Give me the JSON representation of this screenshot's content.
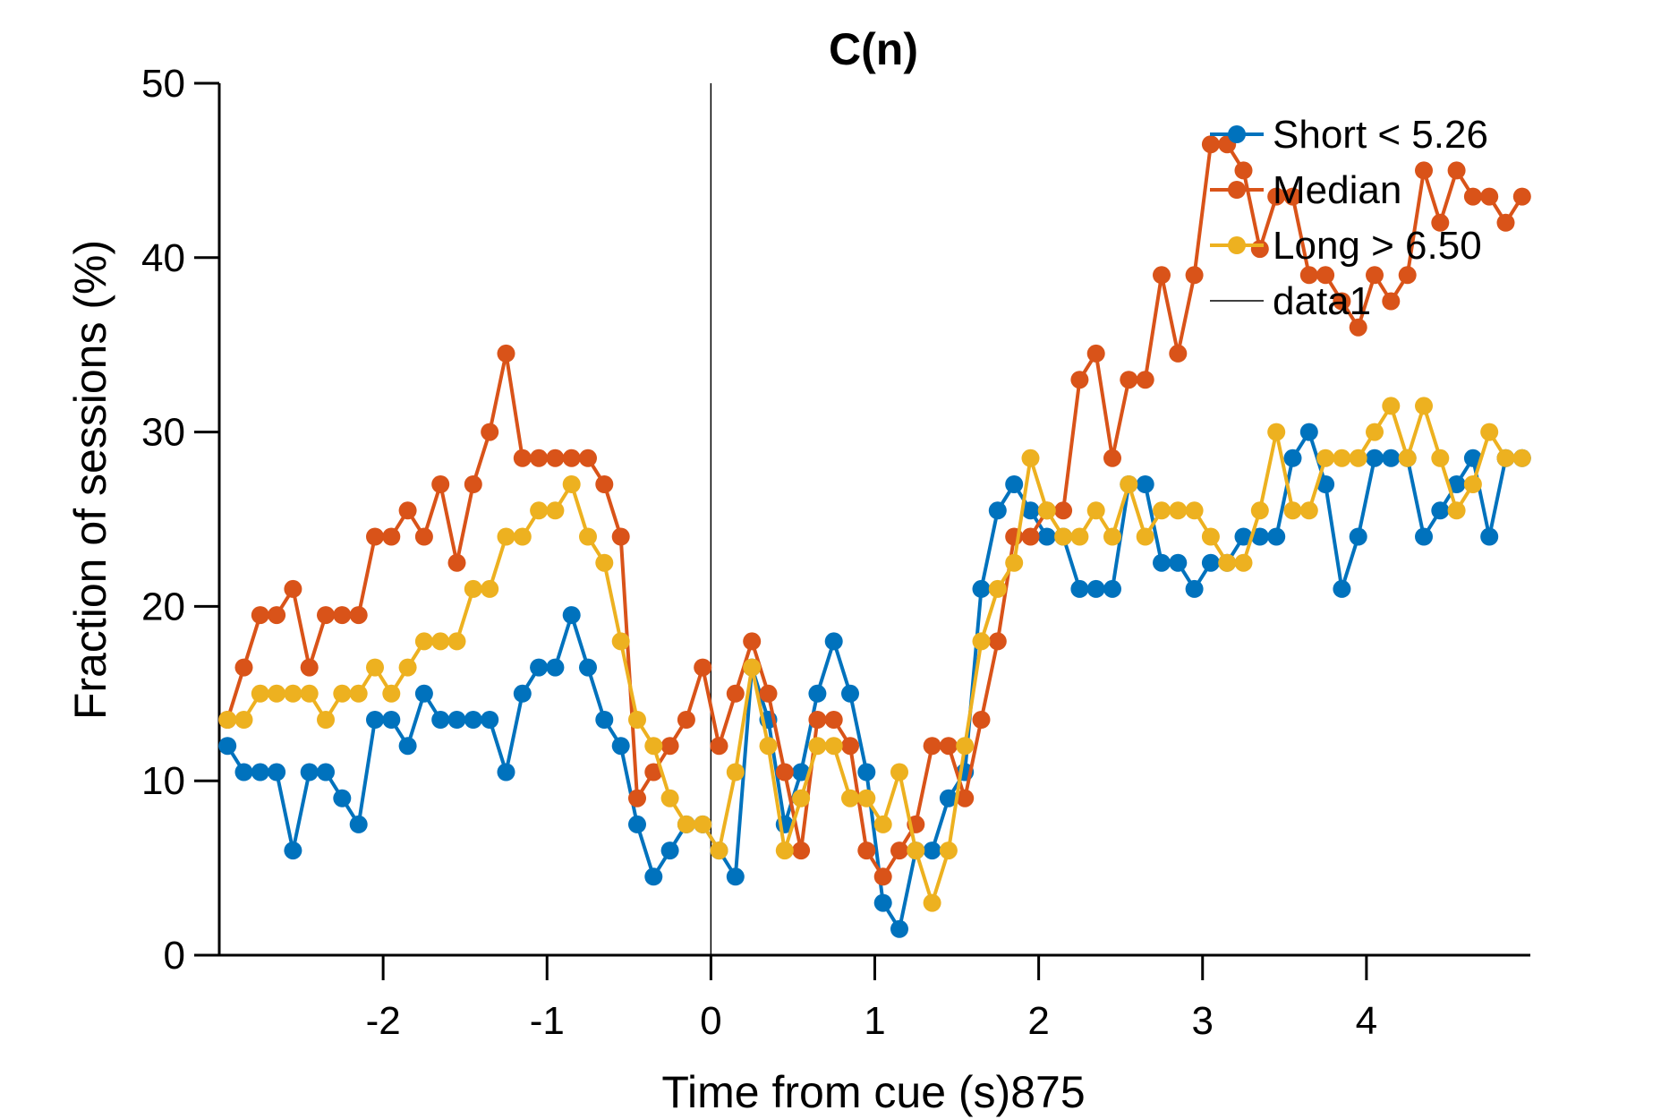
{
  "chart_data": {
    "type": "line",
    "title": "C(n)",
    "xlabel": "Time from cue (s)875",
    "ylabel": "Fraction of sessions (%)",
    "xlim": [
      -3,
      5
    ],
    "ylim": [
      0,
      50
    ],
    "xticks": [
      -2,
      -1,
      0,
      1,
      2,
      3,
      4
    ],
    "xtick_labels": [
      "-2",
      "-1",
      "0",
      "1",
      "2",
      "3",
      "4"
    ],
    "yticks": [
      0,
      10,
      20,
      30,
      40,
      50
    ],
    "ytick_labels": [
      "0",
      "10",
      "20",
      "30",
      "40",
      "50"
    ],
    "grid": false,
    "legend_position": "top-right",
    "x_start": -2.95,
    "x_step": 0.1,
    "series": [
      {
        "name": "Short < 5.26",
        "color": "#0072BD",
        "values": [
          12.0,
          10.5,
          10.5,
          10.5,
          6.0,
          10.5,
          10.5,
          9.0,
          7.5,
          13.5,
          13.5,
          12.0,
          15.0,
          13.5,
          13.5,
          13.5,
          13.5,
          10.5,
          15.0,
          16.5,
          16.5,
          19.5,
          16.5,
          13.5,
          12.0,
          7.5,
          4.5,
          6.0,
          7.5,
          7.5,
          6.0,
          4.5,
          16.5,
          13.5,
          7.5,
          10.5,
          15.0,
          18.0,
          15.0,
          10.5,
          3.0,
          1.5,
          6.0,
          6.0,
          9.0,
          10.5,
          21.0,
          25.5,
          27.0,
          25.5,
          24.0,
          24.0,
          21.0,
          21.0,
          21.0,
          27.0,
          27.0,
          22.5,
          22.5,
          21.0,
          22.5,
          22.5,
          24.0,
          24.0,
          24.0,
          28.5,
          30.0,
          27.0,
          21.0,
          24.0,
          28.5,
          28.5,
          28.5,
          24.0,
          25.5,
          27.0,
          28.5,
          24.0,
          28.5,
          28.5
        ]
      },
      {
        "name": "Median",
        "color": "#D95319",
        "values": [
          13.5,
          16.5,
          19.5,
          19.5,
          21.0,
          16.5,
          19.5,
          19.5,
          19.5,
          24.0,
          24.0,
          25.5,
          24.0,
          27.0,
          22.5,
          27.0,
          30.0,
          34.5,
          28.5,
          28.5,
          28.5,
          28.5,
          28.5,
          27.0,
          24.0,
          9.0,
          10.5,
          12.0,
          13.5,
          16.5,
          12.0,
          15.0,
          18.0,
          15.0,
          10.5,
          6.0,
          13.5,
          13.5,
          12.0,
          6.0,
          4.5,
          6.0,
          7.5,
          12.0,
          12.0,
          9.0,
          13.5,
          18.0,
          24.0,
          24.0,
          25.5,
          25.5,
          33.0,
          34.5,
          28.5,
          33.0,
          33.0,
          39.0,
          34.5,
          39.0,
          46.5,
          46.5,
          45.0,
          40.5,
          43.5,
          43.5,
          39.0,
          39.0,
          37.5,
          36.0,
          39.0,
          37.5,
          39.0,
          45.0,
          42.0,
          45.0,
          43.5,
          43.5,
          42.0,
          43.5
        ]
      },
      {
        "name": "Long > 6.50",
        "color": "#EDB120",
        "values": [
          13.5,
          13.5,
          15.0,
          15.0,
          15.0,
          15.0,
          13.5,
          15.0,
          15.0,
          16.5,
          15.0,
          16.5,
          18.0,
          18.0,
          18.0,
          21.0,
          21.0,
          24.0,
          24.0,
          25.5,
          25.5,
          27.0,
          24.0,
          22.5,
          18.0,
          13.5,
          12.0,
          9.0,
          7.5,
          7.5,
          6.0,
          10.5,
          16.5,
          12.0,
          6.0,
          9.0,
          12.0,
          12.0,
          9.0,
          9.0,
          7.5,
          10.5,
          6.0,
          3.0,
          6.0,
          12.0,
          18.0,
          21.0,
          22.5,
          28.5,
          25.5,
          24.0,
          24.0,
          25.5,
          24.0,
          27.0,
          24.0,
          25.5,
          25.5,
          25.5,
          24.0,
          22.5,
          22.5,
          25.5,
          30.0,
          25.5,
          25.5,
          28.5,
          28.5,
          28.5,
          30.0,
          31.5,
          28.5,
          31.5,
          28.5,
          25.5,
          27.0,
          30.0,
          28.5,
          28.5
        ]
      },
      {
        "name": "data1",
        "color": "#000000",
        "type": "vline",
        "x": 0
      }
    ]
  }
}
